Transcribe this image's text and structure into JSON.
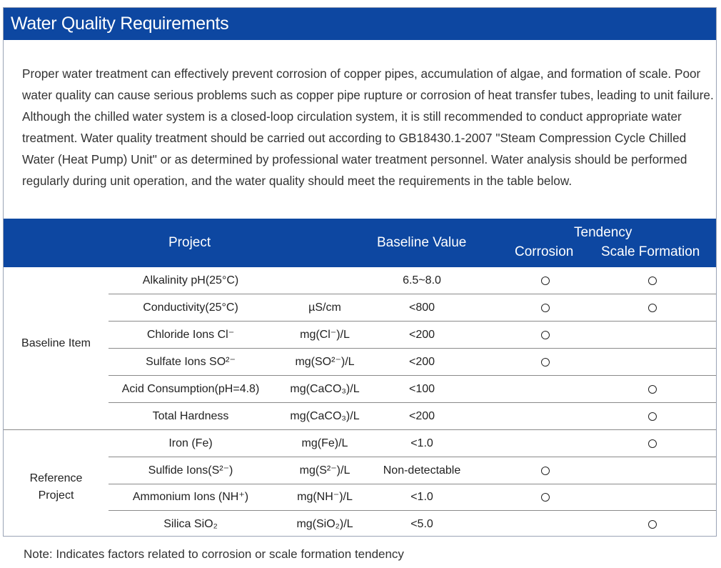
{
  "title": "Water Quality Requirements",
  "intro": "Proper water treatment can effectively prevent corrosion of copper pipes, accumulation of algae, and formation of scale. Poor water quality can cause serious problems such as copper pipe rupture or corrosion of heat transfer tubes, leading to unit failure. Although the chilled water system is a closed-loop circulation system, it is still recommended to conduct appropriate water treatment. Water quality treatment should be carried out according to GB18430.1-2007 \"Steam Compression Cycle Chilled Water (Heat Pump) Unit\" or as determined by professional water treatment personnel. Water analysis should be performed regularly during unit operation, and the water quality should meet the requirements in the table below.",
  "table": {
    "headers": {
      "project": "Project",
      "baseline_value": "Baseline Value",
      "tendency": "Tendency",
      "corrosion": "Corrosion",
      "scale_formation": "Scale Formation"
    },
    "groups": {
      "baseline": "Baseline Item",
      "reference_line1": "Reference",
      "reference_line2": "Project"
    },
    "mark_symbol": "○",
    "rows": [
      {
        "project": "Alkalinity pH(25°C)",
        "unit": "",
        "value": "6.5~8.0",
        "corrosion": "○",
        "scale": "○"
      },
      {
        "project": "Conductivity(25°C)",
        "unit": "µS/cm",
        "value": "<800",
        "corrosion": "○",
        "scale": "○"
      },
      {
        "project": "Chloride Ions Cl⁻",
        "unit": "mg(Cl⁻)/L",
        "value": "<200",
        "corrosion": "○",
        "scale": ""
      },
      {
        "project": "Sulfate Ions SO²⁻",
        "unit": "mg(SO²⁻)/L",
        "value": "<200",
        "corrosion": "○",
        "scale": ""
      },
      {
        "project": "Acid Consumption(pH=4.8)",
        "unit": "mg(CaCO₃)/L",
        "value": "<100",
        "corrosion": "",
        "scale": "○"
      },
      {
        "project": "Total Hardness",
        "unit": "mg(CaCO₃)/L",
        "value": "<200",
        "corrosion": "",
        "scale": "○"
      },
      {
        "project": "Iron (Fe)",
        "unit": "mg(Fe)/L",
        "value": "<1.0",
        "corrosion": "",
        "scale": "○"
      },
      {
        "project": "Sulfide Ions(S²⁻)",
        "unit": "mg(S²⁻)/L",
        "value": "Non-detectable",
        "corrosion": "○",
        "scale": ""
      },
      {
        "project": "Ammonium Ions (NH⁺)",
        "unit": "mg(NH⁻)/L",
        "value": "<1.0",
        "corrosion": "○",
        "scale": ""
      },
      {
        "project": "Silica SiO₂",
        "unit": "mg(SiO₂)/L",
        "value": "<5.0",
        "corrosion": "",
        "scale": "○"
      }
    ]
  },
  "note": "Note: Indicates factors related to corrosion or scale formation tendency"
}
